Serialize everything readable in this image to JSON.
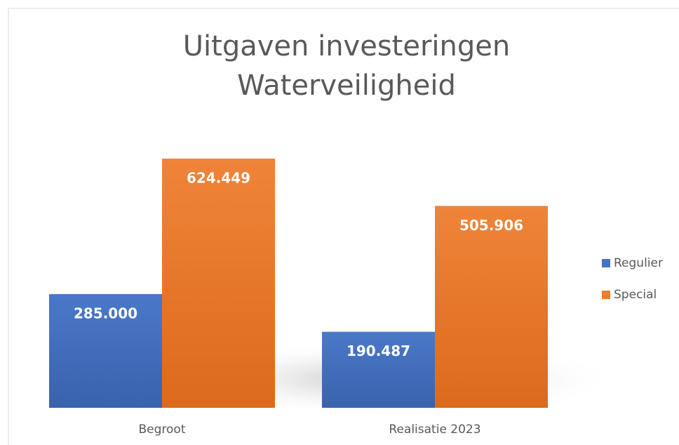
{
  "chart_data": {
    "type": "bar",
    "title": [
      "Uitgaven investeringen",
      "Waterveiligheid"
    ],
    "categories": [
      "Begroot",
      "Realisatie 2023"
    ],
    "series": [
      {
        "name": "Regulier",
        "color": "#4472c4",
        "values": [
          285000,
          190487
        ],
        "value_labels": [
          "285.000",
          "190.487"
        ]
      },
      {
        "name": "Special",
        "color": "#ed7d31",
        "values": [
          624449,
          505906
        ],
        "value_labels": [
          "624.449",
          "505.906"
        ]
      }
    ],
    "legend": "right"
  }
}
